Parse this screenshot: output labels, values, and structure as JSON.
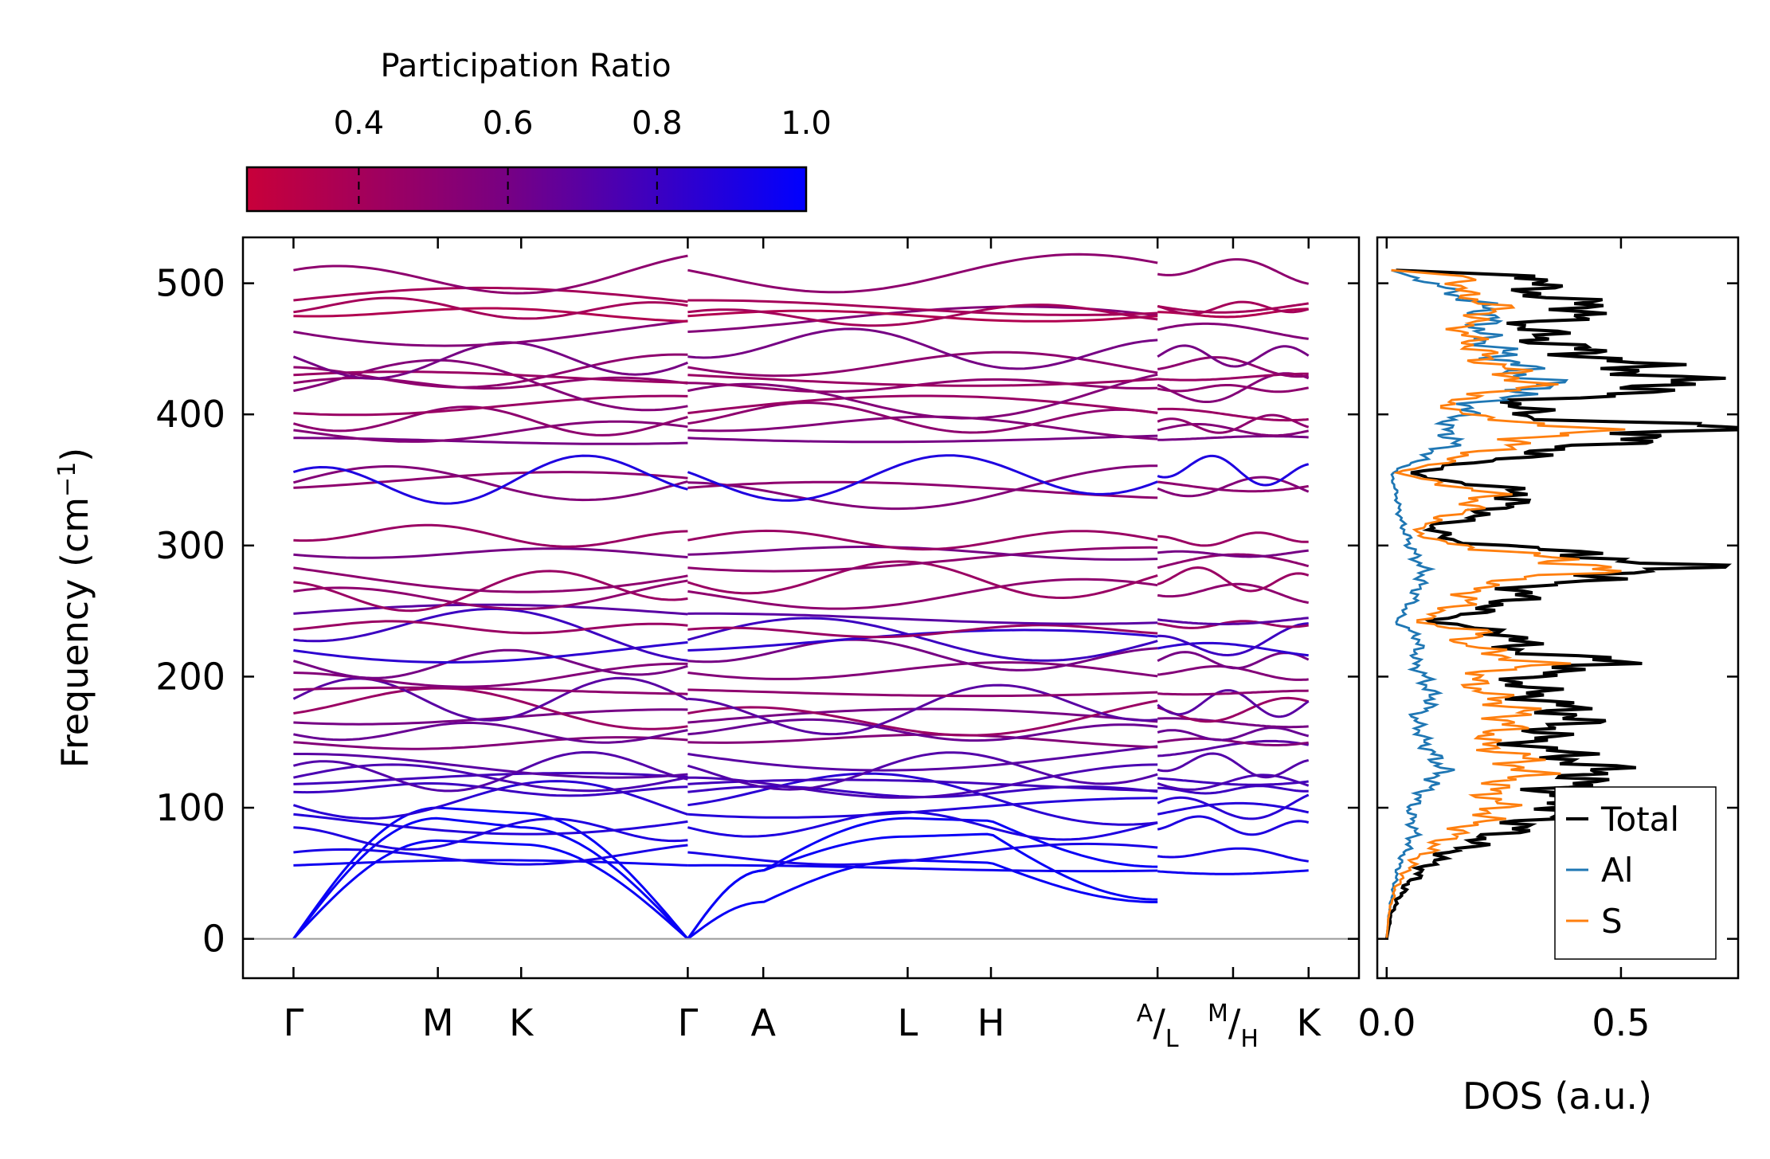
{
  "chart_data": [
    {
      "type": "line",
      "title": "",
      "panel": "phonon band structure",
      "xlabel": "",
      "ylabel": "Frequency (cm⁻¹)",
      "ylabel_main": "Frequency (cm",
      "ylabel_sup": "−1",
      "ylabel_end": ")",
      "ylim": [
        -30,
        535
      ],
      "yticks": [
        0,
        100,
        200,
        300,
        400,
        500
      ],
      "ytick_labels": [
        "0",
        "100",
        "200",
        "300",
        "400",
        "500"
      ],
      "kpoint_labels": [
        {
          "label": "Γ",
          "pos": 0.0
        },
        {
          "label": "M",
          "pos": 1.0
        },
        {
          "label": "K",
          "pos": 1.577
        },
        {
          "label": "Γ",
          "pos": 2.731
        },
        {
          "label": "A",
          "pos": 3.254
        },
        {
          "label": "L",
          "pos": 4.254
        },
        {
          "label": "H",
          "pos": 4.831
        },
        {
          "label": "A|L",
          "sup": "A",
          "sub": "L",
          "pos": 5.985
        },
        {
          "label": "M|H",
          "sup": "M",
          "sub": "H",
          "pos": 6.508
        },
        {
          "label": "K",
          "pos": 7.031
        }
      ],
      "xlim": [
        -0.35,
        7.38
      ],
      "segments": [
        [
          0,
          2.731
        ],
        [
          2.731,
          5.985
        ],
        [
          5.985,
          7.031
        ]
      ],
      "zero_line": 0,
      "colorbar": {
        "title": "Participation Ratio",
        "range": [
          0.25,
          1.0
        ],
        "ticks": [
          0.4,
          0.6,
          0.8,
          1.0
        ],
        "tick_labels": [
          "0.4",
          "0.6",
          "0.8",
          "1.0"
        ],
        "color_low": "#c8003a",
        "color_mid": "#7a0080",
        "color_high": "#0000ff"
      },
      "acoustic_branches": {
        "gamma_values": [
          0,
          0,
          0
        ],
        "M_values": [
          75,
          92,
          100
        ],
        "K_values": [
          72,
          85,
          96
        ],
        "A_values": [
          28,
          52,
          52
        ],
        "L_values": [
          60,
          78,
          92
        ],
        "H_values": [
          58,
          80,
          90
        ],
        "A_end_values": [
          28,
          30,
          55
        ]
      },
      "optical_bands_at_gamma": [
        56,
        66,
        85,
        95,
        102,
        112,
        118,
        123,
        132,
        141,
        150,
        156,
        165,
        172,
        183,
        190,
        203,
        212,
        220,
        228,
        236,
        248,
        265,
        272,
        283,
        293,
        304,
        344,
        348,
        356,
        382,
        388,
        393,
        401,
        418,
        424,
        430,
        436,
        444,
        463,
        475,
        478,
        487,
        510
      ],
      "optical_bands_participation": [
        0.95,
        0.92,
        0.9,
        0.88,
        0.86,
        0.8,
        0.78,
        0.75,
        0.72,
        0.7,
        0.55,
        0.65,
        0.6,
        0.45,
        0.7,
        0.5,
        0.55,
        0.6,
        0.85,
        0.8,
        0.45,
        0.7,
        0.5,
        0.45,
        0.5,
        0.6,
        0.45,
        0.5,
        0.55,
        0.9,
        0.6,
        0.55,
        0.5,
        0.45,
        0.55,
        0.5,
        0.45,
        0.5,
        0.6,
        0.55,
        0.35,
        0.4,
        0.4,
        0.5
      ]
    },
    {
      "type": "line",
      "title": "",
      "panel": "density of states",
      "xlabel": "DOS (a.u.)",
      "ylabel": "",
      "xlim": [
        -0.02,
        0.75
      ],
      "ylim": [
        -30,
        535
      ],
      "xticks": [
        0.0,
        0.5
      ],
      "xtick_labels": [
        "0.0",
        "0.5"
      ],
      "legend": {
        "placement": "bottom-right",
        "entries": [
          "Total",
          "Al",
          "S"
        ]
      },
      "series": [
        {
          "name": "Total",
          "color": "#000000",
          "peaks": [
            [
              0,
              0
            ],
            [
              20,
              0.01
            ],
            [
              40,
              0.04
            ],
            [
              60,
              0.1
            ],
            [
              75,
              0.2
            ],
            [
              90,
              0.32
            ],
            [
              100,
              0.4
            ],
            [
              115,
              0.36
            ],
            [
              125,
              0.46
            ],
            [
              135,
              0.42
            ],
            [
              150,
              0.3
            ],
            [
              160,
              0.36
            ],
            [
              170,
              0.41
            ],
            [
              185,
              0.32
            ],
            [
              200,
              0.28
            ],
            [
              210,
              0.5
            ],
            [
              222,
              0.25
            ],
            [
              230,
              0.3
            ],
            [
              242,
              0.1
            ],
            [
              255,
              0.25
            ],
            [
              270,
              0.32
            ],
            [
              283,
              0.64
            ],
            [
              295,
              0.38
            ],
            [
              305,
              0.12
            ],
            [
              315,
              0.1
            ],
            [
              325,
              0.22
            ],
            [
              340,
              0.3
            ],
            [
              355,
              0.04
            ],
            [
              380,
              0.5
            ],
            [
              390,
              0.72
            ],
            [
              398,
              0.3
            ],
            [
              410,
              0.28
            ],
            [
              420,
              0.63
            ],
            [
              430,
              0.58
            ],
            [
              440,
              0.5
            ],
            [
              455,
              0.35
            ],
            [
              468,
              0.3
            ],
            [
              480,
              0.46
            ],
            [
              495,
              0.3
            ],
            [
              505,
              0.35
            ],
            [
              510,
              0.02
            ]
          ]
        },
        {
          "name": "Al",
          "color": "#1f77b4",
          "peaks": [
            [
              0,
              0
            ],
            [
              20,
              0.005
            ],
            [
              40,
              0.015
            ],
            [
              60,
              0.03
            ],
            [
              80,
              0.06
            ],
            [
              100,
              0.05
            ],
            [
              120,
              0.1
            ],
            [
              130,
              0.12
            ],
            [
              150,
              0.08
            ],
            [
              170,
              0.06
            ],
            [
              180,
              0.1
            ],
            [
              200,
              0.08
            ],
            [
              210,
              0.06
            ],
            [
              230,
              0.07
            ],
            [
              242,
              0.02
            ],
            [
              260,
              0.06
            ],
            [
              280,
              0.08
            ],
            [
              300,
              0.05
            ],
            [
              320,
              0.03
            ],
            [
              340,
              0.02
            ],
            [
              355,
              0.01
            ],
            [
              380,
              0.15
            ],
            [
              390,
              0.12
            ],
            [
              410,
              0.2
            ],
            [
              420,
              0.35
            ],
            [
              430,
              0.3
            ],
            [
              445,
              0.25
            ],
            [
              460,
              0.2
            ],
            [
              480,
              0.22
            ],
            [
              500,
              0.1
            ],
            [
              510,
              0.01
            ]
          ]
        },
        {
          "name": "S",
          "color": "#ff7f0e",
          "peaks": [
            [
              0,
              0
            ],
            [
              20,
              0.005
            ],
            [
              40,
              0.02
            ],
            [
              60,
              0.06
            ],
            [
              75,
              0.12
            ],
            [
              90,
              0.2
            ],
            [
              100,
              0.24
            ],
            [
              115,
              0.22
            ],
            [
              125,
              0.3
            ],
            [
              140,
              0.28
            ],
            [
              150,
              0.2
            ],
            [
              160,
              0.25
            ],
            [
              175,
              0.28
            ],
            [
              190,
              0.2
            ],
            [
              200,
              0.18
            ],
            [
              210,
              0.32
            ],
            [
              225,
              0.16
            ],
            [
              235,
              0.2
            ],
            [
              242,
              0.06
            ],
            [
              255,
              0.16
            ],
            [
              270,
              0.2
            ],
            [
              283,
              0.48
            ],
            [
              295,
              0.26
            ],
            [
              305,
              0.08
            ],
            [
              315,
              0.07
            ],
            [
              325,
              0.16
            ],
            [
              340,
              0.22
            ],
            [
              355,
              0.02
            ],
            [
              380,
              0.3
            ],
            [
              390,
              0.44
            ],
            [
              398,
              0.18
            ],
            [
              410,
              0.12
            ],
            [
              420,
              0.3
            ],
            [
              430,
              0.28
            ],
            [
              440,
              0.22
            ],
            [
              455,
              0.18
            ],
            [
              468,
              0.16
            ],
            [
              480,
              0.24
            ],
            [
              495,
              0.15
            ],
            [
              505,
              0.18
            ],
            [
              510,
              0.01
            ]
          ]
        }
      ]
    }
  ]
}
